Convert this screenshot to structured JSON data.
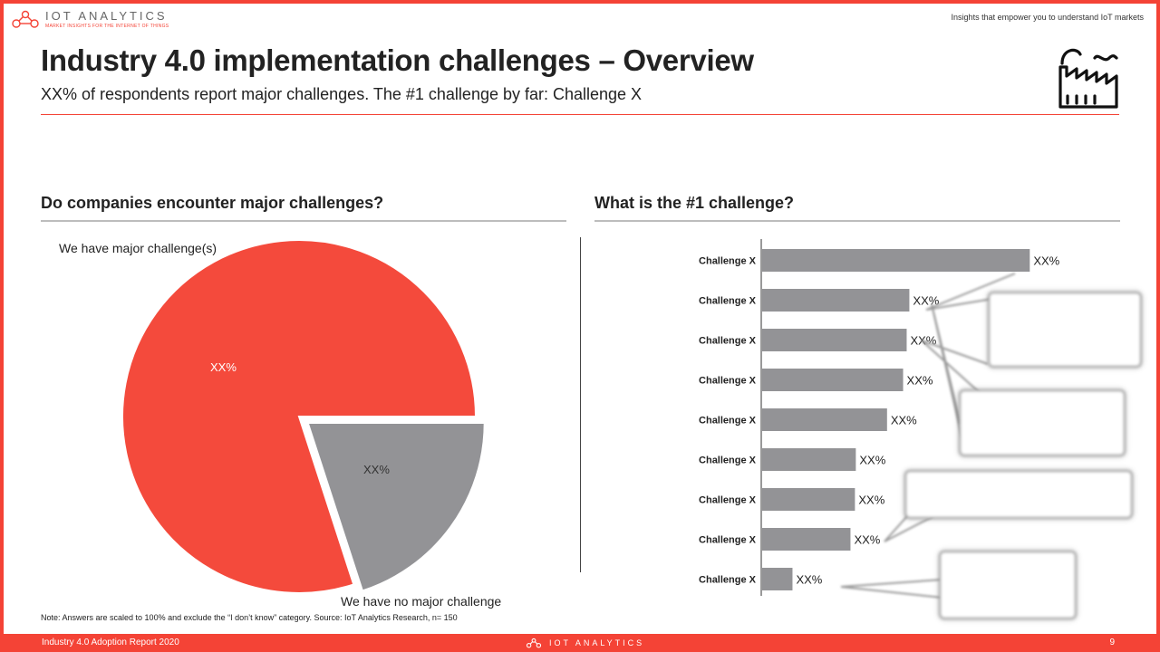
{
  "header": {
    "logo_text": "IOT ANALYTICS",
    "logo_tagline": "MARKET INSIGHTS FOR THE INTERNET OF THINGS",
    "tagline": "Insights that empower you to understand IoT markets",
    "title": "Industry 4.0 implementation challenges – Overview",
    "subtitle": "XX% of respondents report major challenges. The #1 challenge by far: Challenge X",
    "icon": "factory-icon"
  },
  "left_section": {
    "heading": "Do companies encounter major challenges?"
  },
  "right_section": {
    "heading": "What is the #1 challenge?"
  },
  "chart_data": [
    {
      "type": "pie",
      "labels": [
        "We have major challenge(s)",
        "We have no major challenge"
      ],
      "value_labels": [
        "XX%",
        "XX%"
      ],
      "values": [
        80,
        20
      ],
      "colors": [
        "#f44a3c",
        "#939396"
      ],
      "exploded_slice": 1
    },
    {
      "type": "bar",
      "orientation": "horizontal",
      "categories": [
        "Challenge X",
        "Challenge X",
        "Challenge X",
        "Challenge X",
        "Challenge X",
        "Challenge X",
        "Challenge X",
        "Challenge X",
        "Challenge X"
      ],
      "values": [
        30,
        16.5,
        16.2,
        15.8,
        14,
        10.5,
        10.4,
        9.9,
        3.4
      ],
      "value_labels": [
        "XX%",
        "XX%",
        "XX%",
        "XX%",
        "XX%",
        "XX%",
        "XX%",
        "XX%",
        "XX%"
      ],
      "color": "#939396",
      "xlim": [
        0,
        32
      ],
      "grid": false
    }
  ],
  "note": "Note: Answers are scaled to 100% and exclude the “I don’t know” category. Source: IoT Analytics Research, n= 150",
  "footer": {
    "report_title": "Industry 4.0 Adoption Report 2020",
    "logo_text": "IOT ANALYTICS",
    "page_number": "9"
  },
  "colors": {
    "accent": "#f44336",
    "pie_major": "#f44a3c",
    "bars": "#939396"
  }
}
